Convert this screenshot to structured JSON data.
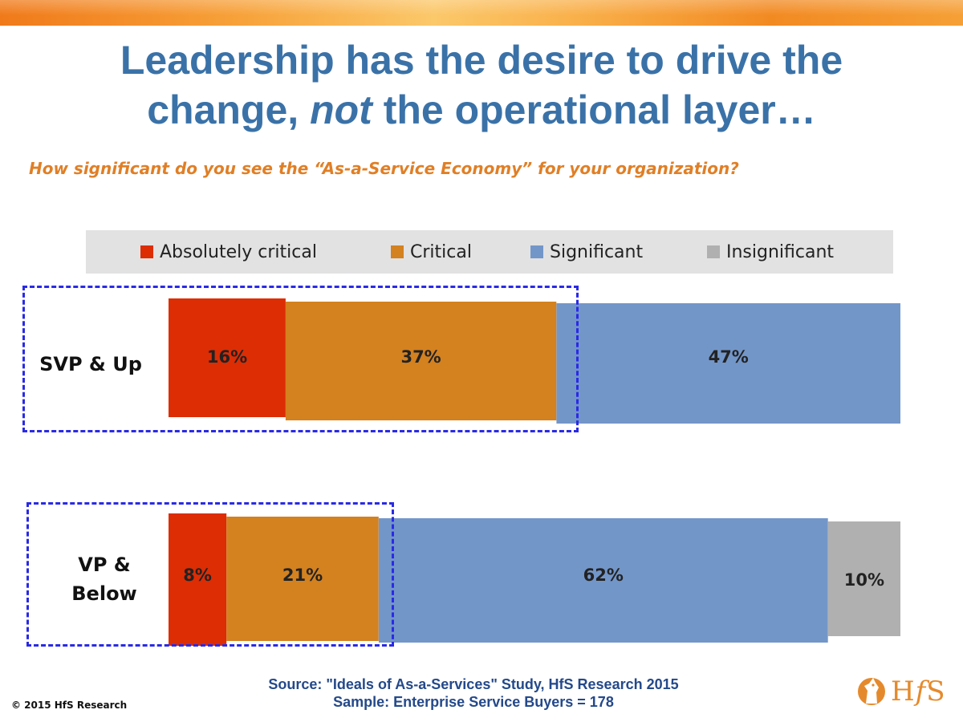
{
  "title": {
    "line1": "Leadership has the desire to drive the",
    "line2_prefix": "change, ",
    "line2_emphasis": "not",
    "line2_suffix": " the operational layer…"
  },
  "subtitle": "How significant do you see the “As-a-Service Economy” for your organization?",
  "legend": [
    {
      "label": "Absolutely critical",
      "color": "#dc2d05"
    },
    {
      "label": "Critical",
      "color": "#d4811f"
    },
    {
      "label": "Significant",
      "color": "#7396c9"
    },
    {
      "label": "Insignificant",
      "color": "#b0b0b0"
    }
  ],
  "chart_data": {
    "type": "bar",
    "orientation": "horizontal",
    "stacked": true,
    "normalized": true,
    "categories": [
      "SVP & Up",
      "VP & Below"
    ],
    "series": [
      {
        "name": "Absolutely critical",
        "values": [
          16,
          8
        ],
        "labels": [
          "16%",
          "8%"
        ]
      },
      {
        "name": "Critical",
        "values": [
          37,
          21
        ],
        "labels": [
          "37%",
          "21%"
        ]
      },
      {
        "name": "Significant",
        "values": [
          47,
          62
        ],
        "labels": [
          "47%",
          "62%"
        ]
      },
      {
        "name": "Insignificant",
        "values": [
          0,
          10
        ],
        "labels": [
          "",
          "10%"
        ]
      }
    ]
  },
  "rows": {
    "svp_label": "SVP & Up",
    "vp_label_line1": "VP &",
    "vp_label_line2": "Below"
  },
  "source": {
    "line1": "Source: \"Ideals of As-a-Services\" Study, HfS Research 2015",
    "line2": "Sample: Enterprise Service Buyers = 178"
  },
  "copyright": "© 2015 HfS Research",
  "logo": {
    "text_h": "H",
    "text_f": "f",
    "text_s": "S"
  }
}
